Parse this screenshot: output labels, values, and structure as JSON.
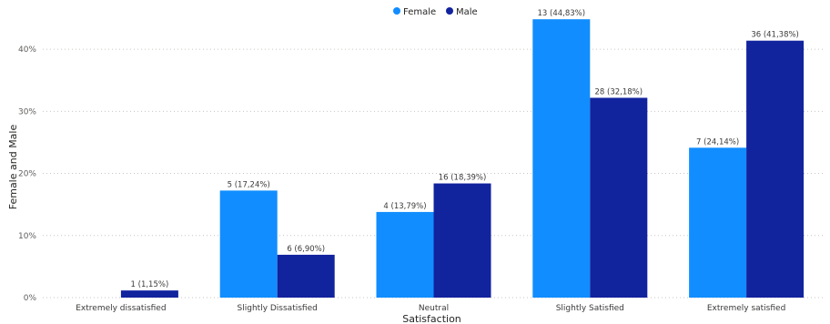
{
  "chart_data": {
    "type": "bar",
    "categories": [
      "Extremely dissatisfied",
      "Slightly Dissatisfied",
      "Neutral",
      "Slightly Satisfied",
      "Extremely satisfied"
    ],
    "series": [
      {
        "name": "Female",
        "color": "#118dff",
        "values": [
          null,
          17.24,
          13.79,
          44.83,
          24.14
        ],
        "labels": [
          null,
          "5 (17,24%)",
          "4 (13,79%)",
          "13 (44,83%)",
          "7 (24,14%)"
        ]
      },
      {
        "name": "Male",
        "color": "#12239e",
        "values": [
          1.15,
          6.9,
          18.39,
          32.18,
          41.38
        ],
        "labels": [
          "1 (1,15%)",
          "6 (6,90%)",
          "16 (18,39%)",
          "28 (32,18%)",
          "36 (41,38%)"
        ]
      }
    ],
    "ylim": [
      0,
      45
    ],
    "yticks": [
      0,
      10,
      20,
      30,
      40
    ],
    "ytick_labels": [
      "0%",
      "10%",
      "20%",
      "30%",
      "40%"
    ],
    "xlabel": "Satisfaction",
    "ylabel": "Female and Male",
    "legend_position": "top-center",
    "grid": true
  }
}
